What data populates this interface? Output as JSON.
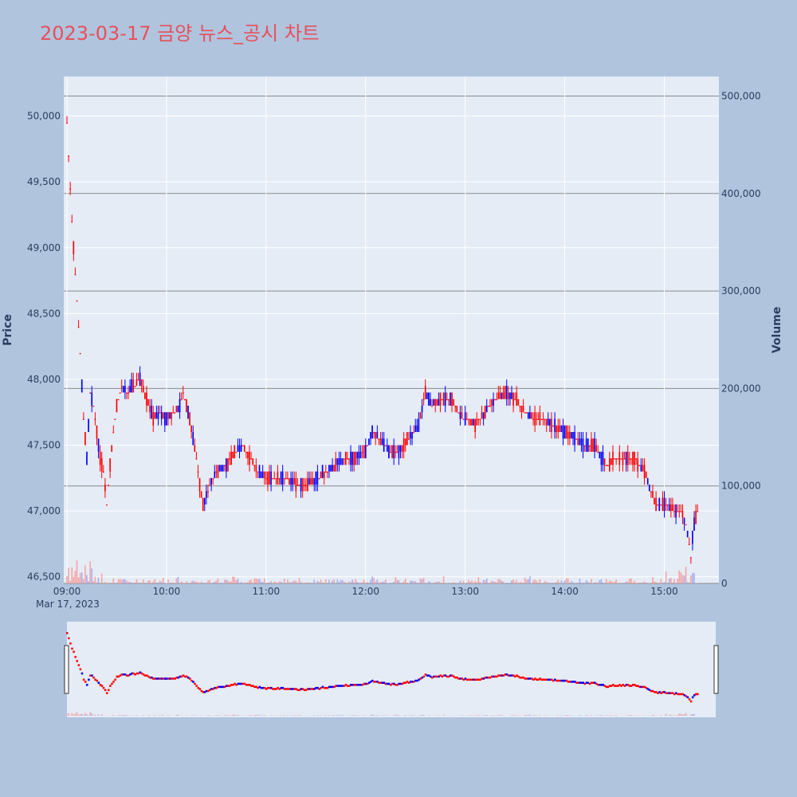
{
  "chart_data": {
    "type": "candlestick",
    "title": "2023-03-17 금양 뉴스_공시 차트",
    "ylabel": "Price",
    "y2label": "Volume",
    "x_date_label": "Mar 17, 2023",
    "x_ticks": [
      "09:00",
      "10:00",
      "11:00",
      "12:00",
      "13:00",
      "14:00",
      "15:00"
    ],
    "y_ticks": [
      "46,500",
      "47,000",
      "47,500",
      "48,000",
      "48,500",
      "49,000",
      "49,500",
      "50,000"
    ],
    "y_tick_values": [
      46500,
      47000,
      47500,
      48000,
      48500,
      49000,
      49500,
      50000
    ],
    "y2_ticks": [
      "0",
      "100,000",
      "200,000",
      "300,000",
      "400,000",
      "500,000"
    ],
    "y2_tick_values": [
      0,
      100000,
      200000,
      300000,
      400000,
      500000
    ],
    "ylim": [
      46450,
      50300
    ],
    "y2lim": [
      0,
      520000
    ],
    "session": [
      "09:00",
      "15:30"
    ],
    "colors": {
      "up": "#ff0000",
      "down": "#0000ff",
      "volume_up": "#f4a6a6",
      "volume_down": "#a9b0f0",
      "plot_bg": "#e5ecf6",
      "page_bg": "#b0c4de",
      "title": "#e8505b"
    },
    "price_path": [
      [
        "09:00",
        49950
      ],
      [
        "09:01",
        49700
      ],
      [
        "09:02",
        49450
      ],
      [
        "09:03",
        49200
      ],
      [
        "09:04",
        49000
      ],
      [
        "09:05",
        48800
      ],
      [
        "09:06",
        48600
      ],
      [
        "09:07",
        48400
      ],
      [
        "09:08",
        48200
      ],
      [
        "09:10",
        47700
      ],
      [
        "09:12",
        47400
      ],
      [
        "09:14",
        47900
      ],
      [
        "09:16",
        47800
      ],
      [
        "09:18",
        47600
      ],
      [
        "09:20",
        47400
      ],
      [
        "09:22",
        47300
      ],
      [
        "09:24",
        47050
      ],
      [
        "09:26",
        47350
      ],
      [
        "09:28",
        47600
      ],
      [
        "09:30",
        47800
      ],
      [
        "09:33",
        47950
      ],
      [
        "09:36",
        47900
      ],
      [
        "09:40",
        47950
      ],
      [
        "09:44",
        48000
      ],
      [
        "09:48",
        47850
      ],
      [
        "09:52",
        47700
      ],
      [
        "09:56",
        47750
      ],
      [
        "10:00",
        47700
      ],
      [
        "10:04",
        47750
      ],
      [
        "10:08",
        47800
      ],
      [
        "10:10",
        47900
      ],
      [
        "10:14",
        47700
      ],
      [
        "10:18",
        47400
      ],
      [
        "10:20",
        47200
      ],
      [
        "10:22",
        47050
      ],
      [
        "10:26",
        47200
      ],
      [
        "10:30",
        47300
      ],
      [
        "10:36",
        47350
      ],
      [
        "10:42",
        47450
      ],
      [
        "10:46",
        47500
      ],
      [
        "10:50",
        47400
      ],
      [
        "10:55",
        47300
      ],
      [
        "11:00",
        47250
      ],
      [
        "11:06",
        47250
      ],
      [
        "11:12",
        47250
      ],
      [
        "11:18",
        47200
      ],
      [
        "11:24",
        47200
      ],
      [
        "11:30",
        47250
      ],
      [
        "11:36",
        47300
      ],
      [
        "11:42",
        47350
      ],
      [
        "11:48",
        47400
      ],
      [
        "11:54",
        47400
      ],
      [
        "12:00",
        47450
      ],
      [
        "12:04",
        47600
      ],
      [
        "12:08",
        47550
      ],
      [
        "12:14",
        47450
      ],
      [
        "12:20",
        47450
      ],
      [
        "12:26",
        47550
      ],
      [
        "12:32",
        47650
      ],
      [
        "12:36",
        47900
      ],
      [
        "12:40",
        47800
      ],
      [
        "12:46",
        47850
      ],
      [
        "12:52",
        47850
      ],
      [
        "12:56",
        47750
      ],
      [
        "13:00",
        47700
      ],
      [
        "13:06",
        47650
      ],
      [
        "13:12",
        47750
      ],
      [
        "13:18",
        47850
      ],
      [
        "13:24",
        47900
      ],
      [
        "13:30",
        47850
      ],
      [
        "13:36",
        47750
      ],
      [
        "13:42",
        47700
      ],
      [
        "13:48",
        47700
      ],
      [
        "13:54",
        47650
      ],
      [
        "14:00",
        47600
      ],
      [
        "14:06",
        47550
      ],
      [
        "14:12",
        47500
      ],
      [
        "14:18",
        47500
      ],
      [
        "14:22",
        47400
      ],
      [
        "14:26",
        47350
      ],
      [
        "14:30",
        47400
      ],
      [
        "14:36",
        47400
      ],
      [
        "14:42",
        47400
      ],
      [
        "14:48",
        47300
      ],
      [
        "14:52",
        47150
      ],
      [
        "14:55",
        47050
      ],
      [
        "14:58",
        47050
      ],
      [
        "15:02",
        47050
      ],
      [
        "15:06",
        47000
      ],
      [
        "15:10",
        47000
      ],
      [
        "15:13",
        46900
      ],
      [
        "15:15",
        46750
      ],
      [
        "15:16",
        46650
      ],
      [
        "15:17",
        46800
      ],
      [
        "15:18",
        46900
      ],
      [
        "15:19",
        46950
      ],
      [
        "15:20",
        47000
      ]
    ]
  }
}
